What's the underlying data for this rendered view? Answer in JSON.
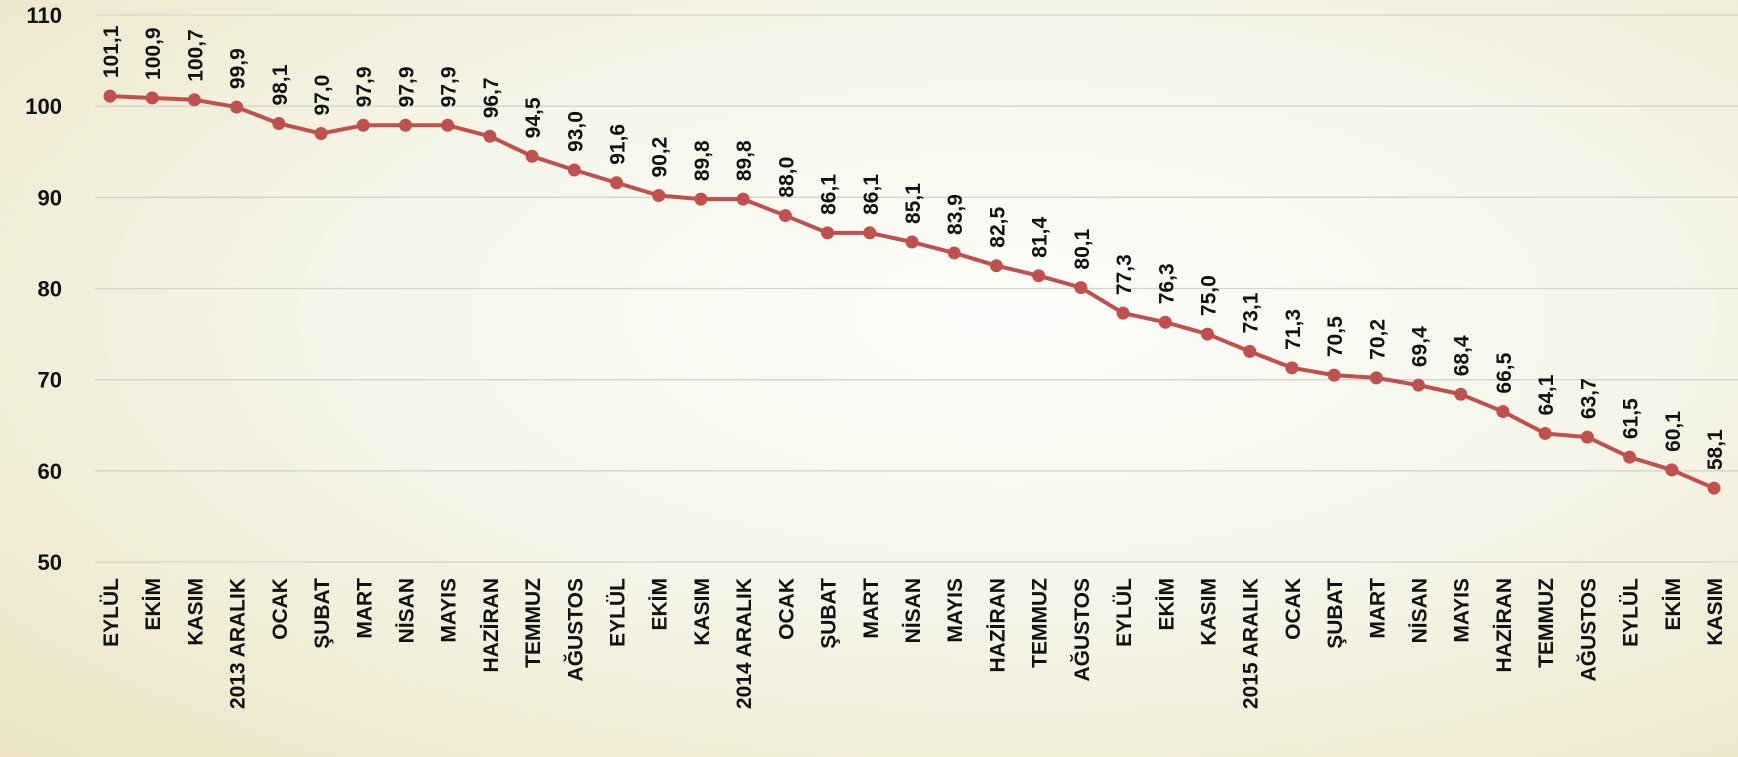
{
  "chart_data": {
    "type": "line",
    "title": "",
    "xlabel": "",
    "ylabel": "",
    "ylim": [
      50,
      110
    ],
    "yticks": [
      50,
      60,
      70,
      80,
      90,
      100,
      110
    ],
    "grid": true,
    "legend": "none",
    "categories": [
      "EYLÜL",
      "EKİM",
      "KASIM",
      "2013 ARALIK",
      "OCAK",
      "ŞUBAT",
      "MART",
      "NİSAN",
      "MAYIS",
      "HAZİRAN",
      "TEMMUZ",
      "AĞUSTOS",
      "EYLÜL",
      "EKİM",
      "KASIM",
      "2014 ARALIK",
      "OCAK",
      "ŞUBAT",
      "MART",
      "NİSAN",
      "MAYIS",
      "HAZİRAN",
      "TEMMUZ",
      "AĞUSTOS",
      "EYLÜL",
      "EKİM",
      "KASIM",
      "2015 ARALIK",
      "OCAK",
      "ŞUBAT",
      "MART",
      "NİSAN",
      "MAYIS",
      "HAZİRAN",
      "TEMMUZ",
      "AĞUSTOS",
      "EYLÜL",
      "EKİM",
      "KASIM"
    ],
    "series": [
      {
        "values": [
          101.1,
          100.9,
          100.7,
          99.9,
          98.1,
          97.0,
          97.9,
          97.9,
          97.9,
          96.7,
          94.5,
          93.0,
          91.6,
          90.2,
          89.8,
          89.8,
          88.0,
          86.1,
          86.1,
          85.1,
          83.9,
          82.5,
          81.4,
          80.1,
          77.3,
          76.3,
          75.0,
          73.1,
          71.3,
          70.5,
          70.2,
          69.4,
          68.4,
          66.5,
          64.1,
          63.7,
          61.5,
          60.1,
          58.1
        ],
        "labels": [
          "101,1",
          "100,9",
          "100,7",
          "99,9",
          "98,1",
          "97,0",
          "97,9",
          "97,9",
          "97,9",
          "96,7",
          "94,5",
          "93,0",
          "91,6",
          "90,2",
          "89,8",
          "89,8",
          "88,0",
          "86,1",
          "86,1",
          "85,1",
          "83,9",
          "82,5",
          "81,4",
          "80,1",
          "77,3",
          "76,3",
          "75,0",
          "73,1",
          "71,3",
          "70,5",
          "70,2",
          "69,4",
          "68,4",
          "66,5",
          "64,1",
          "63,7",
          "61,5",
          "60,1",
          "58,1"
        ]
      }
    ],
    "colors": {
      "line": "#c0504d",
      "marker": "#c0504d"
    }
  }
}
